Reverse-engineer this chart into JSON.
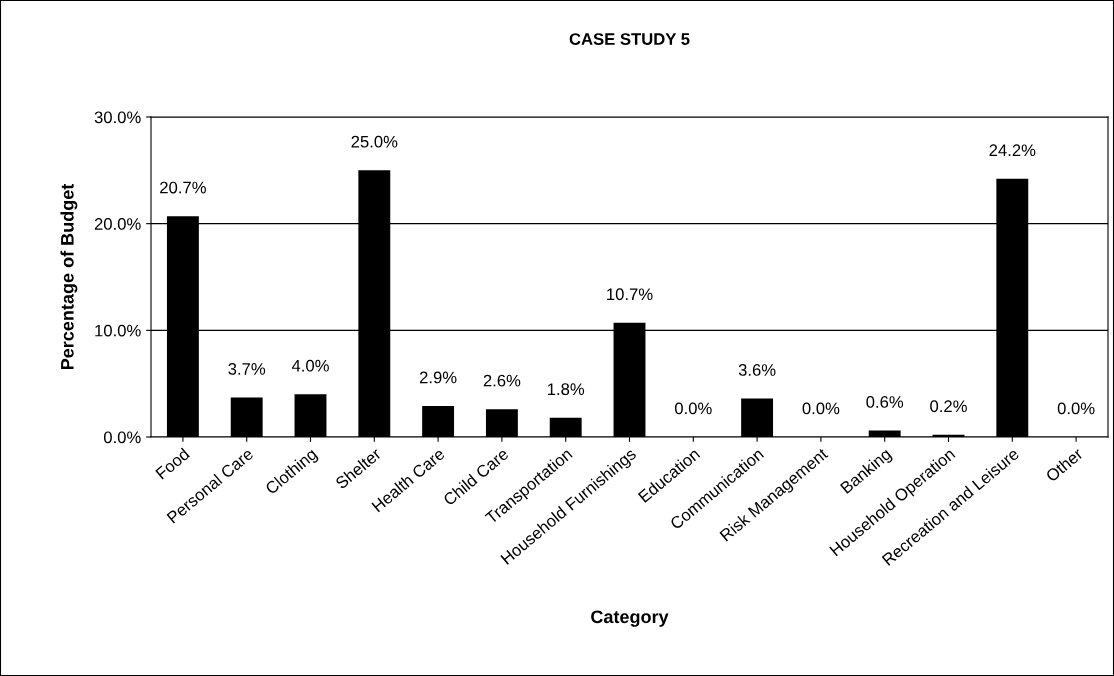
{
  "chart_data": {
    "type": "bar",
    "title": "CASE STUDY 5",
    "xlabel": "Category",
    "ylabel": "Percentage of Budget",
    "categories": [
      "Food",
      "Personal Care",
      "Clothing",
      "Shelter",
      "Health Care",
      "Child Care",
      "Transportation",
      "Household Furnishings",
      "Education",
      "Communication",
      "Risk Management",
      "Banking",
      "Household Operation",
      "Recreation and Leisure",
      "Other"
    ],
    "values": [
      20.7,
      3.7,
      4.0,
      25.0,
      2.9,
      2.6,
      1.8,
      10.7,
      0.0,
      3.6,
      0.0,
      0.6,
      0.2,
      24.2,
      0.0
    ],
    "value_labels": [
      "20.7%",
      "3.7%",
      "4.0%",
      "25.0%",
      "2.9%",
      "2.6%",
      "1.8%",
      "10.7%",
      "0.0%",
      "3.6%",
      "0.0%",
      "0.6%",
      "0.2%",
      "24.2%",
      "0.0%"
    ],
    "color": "#000000",
    "ylim": [
      0,
      30
    ],
    "yticks": [
      {
        "value": 0,
        "label": "0.0%"
      },
      {
        "value": 10,
        "label": "10.0%"
      },
      {
        "value": 20,
        "label": "20.0%"
      },
      {
        "value": 30,
        "label": "30.0%"
      }
    ],
    "grid": "y",
    "legend": false
  }
}
